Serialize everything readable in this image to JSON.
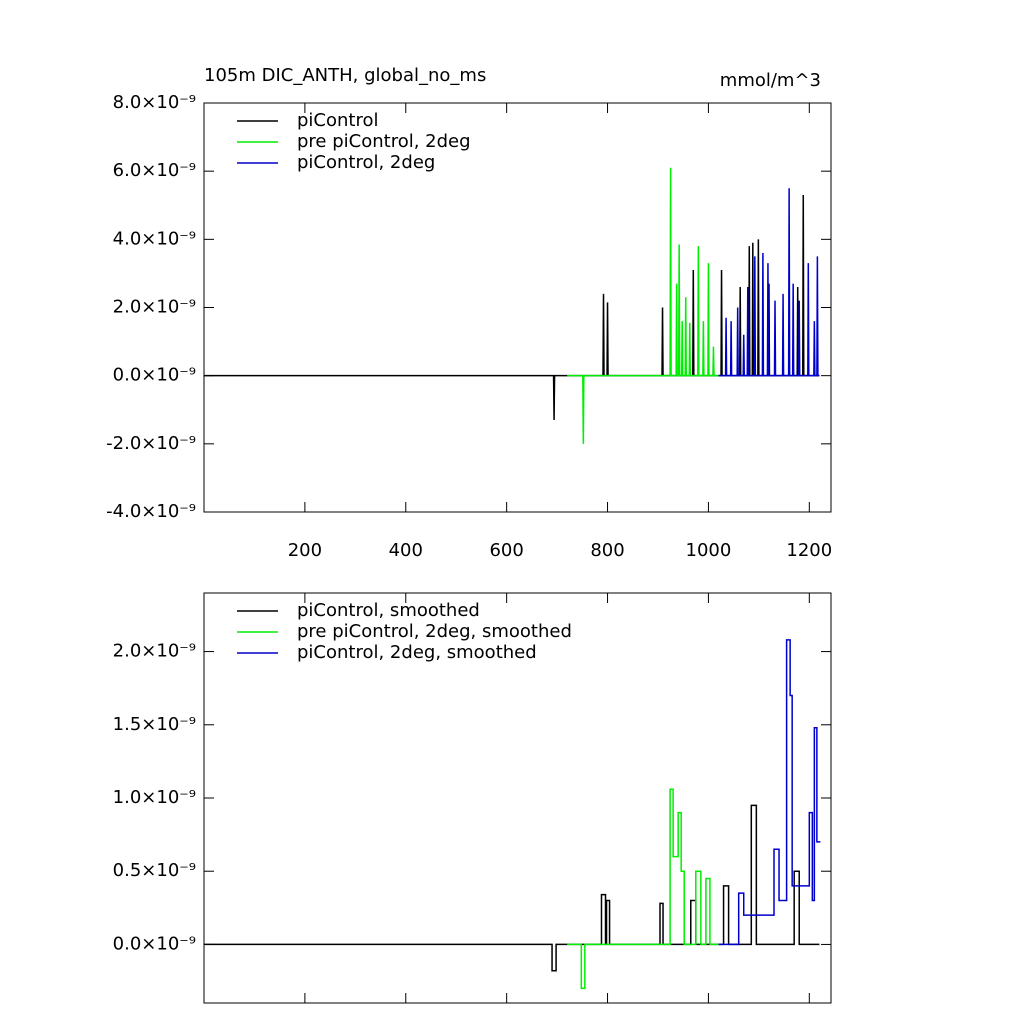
{
  "chart_data": [
    {
      "type": "line",
      "title": "105m DIC_ANTH, global_no_ms",
      "unit_label": "mmol/m^3",
      "xlim": [
        0,
        1243
      ],
      "xticks": [
        200,
        400,
        600,
        800,
        1000,
        1200
      ],
      "ylim": [
        -4e-09,
        8e-09
      ],
      "yticks": [
        {
          "value": -4e-09,
          "label": "-4.0×10⁻⁹"
        },
        {
          "value": -2e-09,
          "label": "-2.0×10⁻⁹"
        },
        {
          "value": 0,
          "label": "0.0×10⁻⁹"
        },
        {
          "value": 2e-09,
          "label": "2.0×10⁻⁹"
        },
        {
          "value": 4e-09,
          "label": "4.0×10⁻⁹"
        },
        {
          "value": 6e-09,
          "label": "6.0×10⁻⁹"
        },
        {
          "value": 8e-09,
          "label": "8.0×10⁻⁹"
        }
      ],
      "series": [
        {
          "name": "piControl",
          "color": "#000000",
          "x": [
            0,
            693,
            694,
            695,
            791,
            792,
            793,
            799,
            800,
            801,
            908,
            909,
            910,
            969,
            970,
            971,
            1025,
            1026,
            1027,
            1062,
            1063,
            1064,
            1080,
            1081,
            1082,
            1087,
            1088,
            1089,
            1098,
            1099,
            1100,
            1119,
            1120,
            1121,
            1176,
            1177,
            1178,
            1187,
            1188,
            1189,
            1220
          ],
          "values": [
            0,
            0,
            -1.3e-09,
            0,
            0,
            2.4e-09,
            0,
            0,
            2.15e-09,
            0,
            0,
            2e-09,
            0,
            0,
            3.1e-09,
            0,
            0,
            3.1e-09,
            0,
            0,
            2.6e-09,
            0,
            0,
            3.8e-09,
            0,
            0,
            3.9e-09,
            0,
            0,
            4e-09,
            0,
            0,
            2.7e-09,
            0,
            0,
            2.6e-09,
            0,
            0,
            5.3e-09,
            0,
            0
          ]
        },
        {
          "name": "pre piControl, 2deg",
          "color": "#00ee00",
          "x": [
            720,
            751,
            752,
            753,
            924,
            925,
            926,
            936,
            937,
            938,
            941,
            942,
            943,
            947,
            948,
            949,
            954,
            955,
            956,
            962,
            963,
            964,
            979,
            980,
            981,
            989,
            990,
            991,
            999,
            1000,
            1001,
            1009,
            1010,
            1011,
            1020
          ],
          "values": [
            0,
            0,
            -2e-09,
            0,
            0,
            6.1e-09,
            0,
            0,
            2.7e-09,
            0,
            0,
            3.85e-09,
            0,
            0,
            1.6e-09,
            0,
            0,
            2.3e-09,
            0,
            0,
            1.55e-09,
            0,
            0,
            3.8e-09,
            0,
            0,
            1.6e-09,
            0,
            0,
            3.3e-09,
            0,
            0,
            8.5e-10,
            0,
            0
          ]
        },
        {
          "name": "piControl, 2deg",
          "color": "#0000cc",
          "x": [
            1020,
            1034,
            1035,
            1036,
            1044,
            1045,
            1046,
            1057,
            1058,
            1059,
            1069,
            1070,
            1071,
            1077,
            1078,
            1079,
            1091,
            1092,
            1093,
            1107,
            1108,
            1109,
            1117,
            1118,
            1119,
            1131,
            1132,
            1133,
            1147,
            1148,
            1149,
            1159,
            1160,
            1161,
            1167,
            1168,
            1169,
            1179,
            1180,
            1181,
            1197,
            1198,
            1199,
            1209,
            1210,
            1211,
            1215,
            1216,
            1217,
            1220
          ],
          "values": [
            0,
            0,
            1.7e-09,
            0,
            0,
            1.6e-09,
            0,
            0,
            2e-09,
            0,
            0,
            1.2e-09,
            0,
            0,
            2.6e-09,
            0,
            0,
            3.5e-09,
            0,
            0,
            3.6e-09,
            0,
            0,
            3.3e-09,
            0,
            0,
            2.2e-09,
            0,
            0,
            2.4e-09,
            0,
            0,
            5.5e-09,
            0,
            0,
            2.7e-09,
            0,
            0,
            2.2e-09,
            0,
            0,
            3.3e-09,
            0,
            0,
            1.6e-09,
            0,
            0,
            3.5e-09,
            0,
            0
          ]
        }
      ]
    },
    {
      "type": "line",
      "xlim": [
        0,
        1243
      ],
      "xticks": [
        200,
        400,
        600,
        800,
        1000,
        1200
      ],
      "ylim": [
        -4e-10,
        2.4e-09
      ],
      "yticks": [
        {
          "value": 0,
          "label": "0.0×10⁻⁹"
        },
        {
          "value": 5e-10,
          "label": "0.5×10⁻⁹"
        },
        {
          "value": 1e-09,
          "label": "1.0×10⁻⁹"
        },
        {
          "value": 1.5e-09,
          "label": "1.5×10⁻⁹"
        },
        {
          "value": 2e-09,
          "label": "2.0×10⁻⁹"
        }
      ],
      "series": [
        {
          "name": "piControl, smoothed",
          "color": "#000000",
          "x": [
            0,
            690,
            690,
            698,
            698,
            788,
            788,
            796,
            796,
            798,
            798,
            804,
            804,
            904,
            904,
            910,
            910,
            965,
            965,
            975,
            975,
            1030,
            1030,
            1040,
            1040,
            1085,
            1085,
            1095,
            1095,
            1170,
            1170,
            1180,
            1180,
            1220
          ],
          "values": [
            0,
            0,
            -1.8e-10,
            -1.8e-10,
            0,
            0,
            3.4e-10,
            3.4e-10,
            0,
            0,
            3e-10,
            3e-10,
            0,
            0,
            2.8e-10,
            2.8e-10,
            0,
            0,
            3e-10,
            3e-10,
            0,
            0,
            4e-10,
            4e-10,
            0,
            0,
            9.5e-10,
            9.5e-10,
            0,
            0,
            5e-10,
            5e-10,
            0,
            0
          ]
        },
        {
          "name": "pre piControl, 2deg, smoothed",
          "color": "#00ee00",
          "x": [
            720,
            748,
            748,
            755,
            755,
            924,
            924,
            930,
            930,
            940,
            940,
            946,
            946,
            952,
            952,
            975,
            975,
            985,
            985,
            995,
            995,
            1003,
            1003,
            1020
          ],
          "values": [
            0,
            0,
            -3e-10,
            -3e-10,
            0,
            0,
            1.06e-09,
            1.06e-09,
            6e-10,
            6e-10,
            9e-10,
            9e-10,
            5e-10,
            5e-10,
            0,
            0,
            5e-10,
            5e-10,
            0,
            0,
            4.5e-10,
            4.5e-10,
            0,
            0
          ]
        },
        {
          "name": "piControl, 2deg, smoothed",
          "color": "#0000cc",
          "x": [
            1020,
            1060,
            1060,
            1070,
            1070,
            1130,
            1130,
            1140,
            1140,
            1155,
            1155,
            1162,
            1162,
            1166,
            1166,
            1200,
            1200,
            1206,
            1206,
            1210,
            1210,
            1215,
            1215,
            1222
          ],
          "values": [
            0,
            0,
            3.5e-10,
            3.5e-10,
            2e-10,
            2e-10,
            6.5e-10,
            6.5e-10,
            3e-10,
            3e-10,
            2.08e-09,
            2.08e-09,
            1.7e-09,
            1.7e-09,
            4e-10,
            4e-10,
            9e-10,
            9e-10,
            3e-10,
            3e-10,
            1.48e-09,
            1.48e-09,
            7e-10,
            7e-10
          ]
        }
      ]
    }
  ]
}
